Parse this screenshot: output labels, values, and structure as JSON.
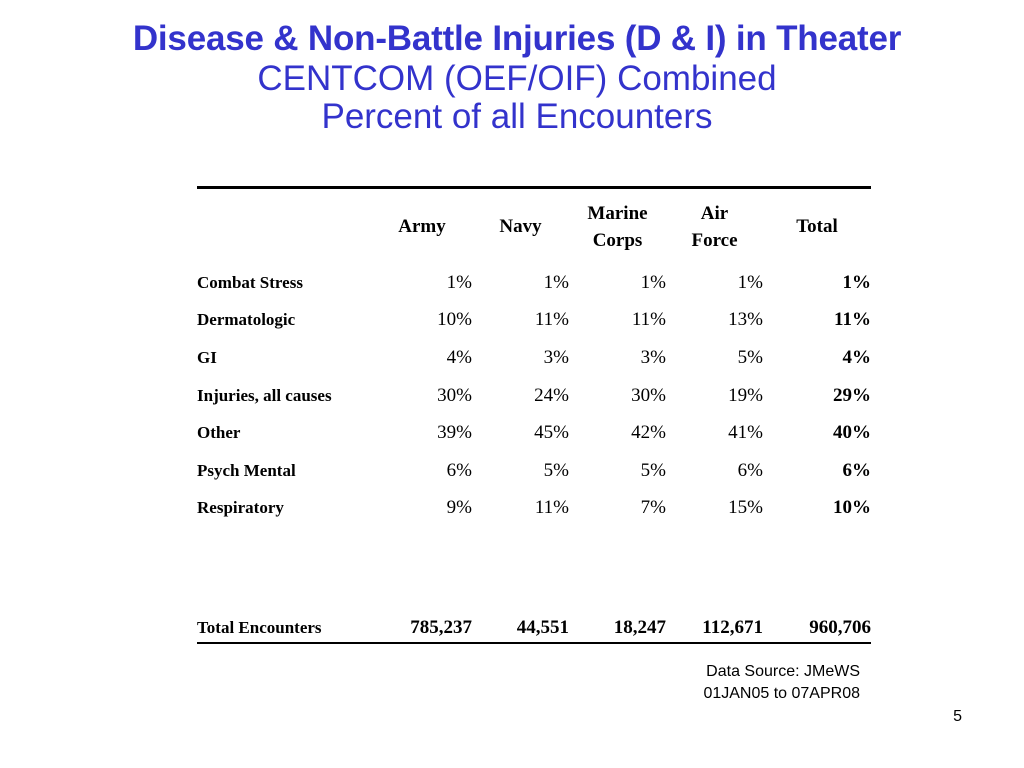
{
  "title": {
    "main": "Disease & Non-Battle Injuries (D & I) in Theater",
    "line2": "CENTCOM (OEF/OIF) Combined",
    "line3": "Percent of all Encounters"
  },
  "table": {
    "headers": {
      "army": "Army",
      "navy": "Navy",
      "marine_1": "Marine",
      "marine_2": "Corps",
      "airforce_1": "Air",
      "airforce_2": "Force",
      "total": "Total"
    },
    "rows": [
      {
        "label": "Combat Stress",
        "army": "1%",
        "navy": "1%",
        "marine": "1%",
        "airforce": "1%",
        "total": "1%"
      },
      {
        "label": "Dermatologic",
        "army": "10%",
        "navy": "11%",
        "marine": "11%",
        "airforce": "13%",
        "total": "11%"
      },
      {
        "label": "GI",
        "army": "4%",
        "navy": "3%",
        "marine": "3%",
        "airforce": "5%",
        "total": "4%"
      },
      {
        "label": "Injuries, all causes",
        "army": "30%",
        "navy": "24%",
        "marine": "30%",
        "airforce": "19%",
        "total": "29%"
      },
      {
        "label": "Other",
        "army": "39%",
        "navy": "45%",
        "marine": "42%",
        "airforce": "41%",
        "total": "40%"
      },
      {
        "label": "Psych Mental",
        "army": "6%",
        "navy": "5%",
        "marine": "5%",
        "airforce": "6%",
        "total": "6%"
      },
      {
        "label": "Respiratory",
        "army": "9%",
        "navy": "11%",
        "marine": "7%",
        "airforce": "15%",
        "total": "10%"
      }
    ],
    "totals": {
      "label": "Total Encounters",
      "army": "785,237",
      "navy": "44,551",
      "marine": "18,247",
      "airforce": "112,671",
      "total": "960,706"
    }
  },
  "source": {
    "line1": "Data Source: JMeWS",
    "line2": "01JAN05 to 07APR08"
  },
  "page_number": "5",
  "colors": {
    "title": "#3333cc",
    "text": "#000000",
    "background": "#ffffff"
  }
}
